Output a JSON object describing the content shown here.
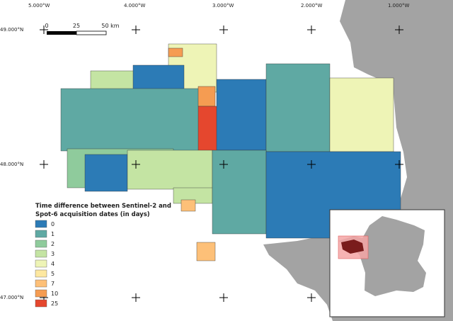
{
  "graticule": {
    "lon": [
      "5.000°W",
      "4.000°W",
      "3.000°W",
      "2.000°W",
      "1.000°W"
    ],
    "lat": [
      "49.000°N",
      "48.000°N",
      "47.000°N"
    ]
  },
  "scale_bar": [
    "0",
    "25",
    "50 km"
  ],
  "legend": {
    "title": [
      "Time difference between Sentinel-2 and",
      "Spot-6 acquisition dates (in days)"
    ],
    "entries": [
      {
        "label": "0",
        "color": "#2c7bb6"
      },
      {
        "label": "1",
        "color": "#5fa9a3"
      },
      {
        "label": "2",
        "color": "#8fcb9c"
      },
      {
        "label": "3",
        "color": "#c4e4a3"
      },
      {
        "label": "4",
        "color": "#eef4b6"
      },
      {
        "label": "5",
        "color": "#fde8a0"
      },
      {
        "label": "7",
        "color": "#fdc078"
      },
      {
        "label": "10",
        "color": "#f59c52"
      },
      {
        "label": "25",
        "color": "#e5472e"
      }
    ]
  }
}
